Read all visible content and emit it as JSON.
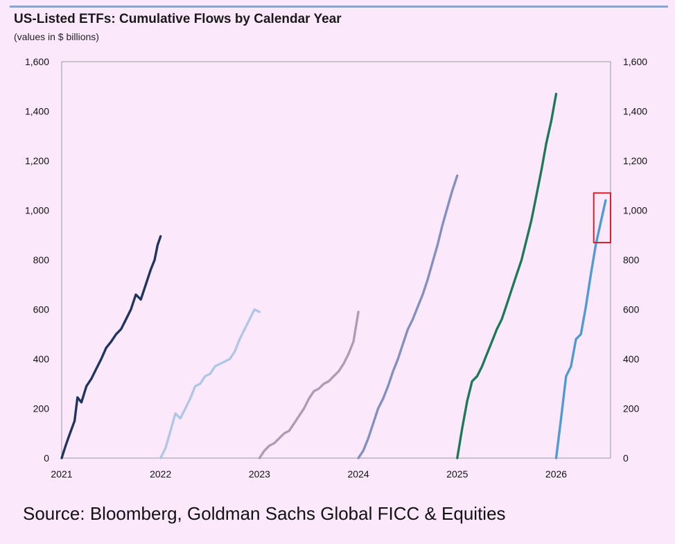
{
  "title": "US-Listed ETFs: Cumulative Flows by Calendar Year",
  "subtitle": "(values in $ billions)",
  "source": "Source: Bloomberg, Goldman Sachs Global FICC & Equities",
  "chart_data": {
    "type": "line",
    "title": "US-Listed ETFs: Cumulative Flows by Calendar Year",
    "ylabel": "(values in $ billions)",
    "ylim": [
      0,
      1600
    ],
    "xlim": [
      2021,
      2026.55
    ],
    "y_ticks": [
      "0",
      "200",
      "400",
      "600",
      "800",
      "1,000",
      "1,200",
      "1,400",
      "1,600"
    ],
    "y_tick_values": [
      0,
      200,
      400,
      600,
      800,
      1000,
      1200,
      1400,
      1600
    ],
    "x_ticks": [
      "2021",
      "2022",
      "2023",
      "2024",
      "2025",
      "2026"
    ],
    "x_tick_values": [
      2021,
      2022,
      2023,
      2024,
      2025,
      2026
    ],
    "legend": "none",
    "grid": false,
    "highlight_box": {
      "x": [
        2026.38,
        2026.55
      ],
      "y": [
        870,
        1070
      ],
      "color": "#d6202a"
    },
    "series": [
      {
        "color": "#1f3560",
        "x": [
          2021.0,
          2021.04,
          2021.08,
          2021.13,
          2021.16,
          2021.2,
          2021.25,
          2021.3,
          2021.35,
          2021.4,
          2021.45,
          2021.5,
          2021.55,
          2021.6,
          2021.65,
          2021.7,
          2021.75,
          2021.8,
          2021.85,
          2021.9,
          2021.94,
          2021.97,
          2022.0
        ],
        "y": [
          0,
          50,
          95,
          150,
          245,
          225,
          290,
          320,
          360,
          400,
          445,
          470,
          500,
          520,
          560,
          600,
          660,
          640,
          700,
          760,
          800,
          860,
          895
        ]
      },
      {
        "color": "#aec7e6",
        "x": [
          2022.0,
          2022.05,
          2022.1,
          2022.15,
          2022.2,
          2022.25,
          2022.3,
          2022.35,
          2022.4,
          2022.45,
          2022.5,
          2022.55,
          2022.6,
          2022.65,
          2022.7,
          2022.75,
          2022.8,
          2022.85,
          2022.9,
          2022.95,
          2023.0
        ],
        "y": [
          0,
          40,
          110,
          180,
          160,
          200,
          240,
          290,
          300,
          330,
          340,
          370,
          380,
          390,
          400,
          430,
          480,
          520,
          560,
          600,
          590
        ]
      },
      {
        "color": "#ad9cb3",
        "x": [
          2023.0,
          2023.05,
          2023.1,
          2023.15,
          2023.2,
          2023.25,
          2023.3,
          2023.35,
          2023.4,
          2023.45,
          2023.5,
          2023.55,
          2023.6,
          2023.65,
          2023.7,
          2023.75,
          2023.8,
          2023.85,
          2023.9,
          2023.95,
          2024.0
        ],
        "y": [
          0,
          30,
          50,
          60,
          80,
          100,
          110,
          140,
          170,
          200,
          240,
          270,
          280,
          300,
          310,
          330,
          350,
          380,
          420,
          470,
          590
        ]
      },
      {
        "color": "#8190c1",
        "x": [
          2024.0,
          2024.05,
          2024.1,
          2024.15,
          2024.2,
          2024.25,
          2024.3,
          2024.35,
          2024.4,
          2024.45,
          2024.5,
          2024.55,
          2024.6,
          2024.65,
          2024.7,
          2024.75,
          2024.8,
          2024.85,
          2024.9,
          2024.95,
          2025.0
        ],
        "y": [
          0,
          30,
          80,
          140,
          200,
          240,
          290,
          350,
          400,
          460,
          520,
          560,
          610,
          660,
          720,
          790,
          860,
          940,
          1010,
          1080,
          1140
        ]
      },
      {
        "color": "#1e7a56",
        "x": [
          2025.0,
          2025.05,
          2025.1,
          2025.15,
          2025.2,
          2025.25,
          2025.3,
          2025.35,
          2025.4,
          2025.45,
          2025.5,
          2025.55,
          2025.6,
          2025.65,
          2025.7,
          2025.75,
          2025.8,
          2025.85,
          2025.9,
          2025.95,
          2026.0
        ],
        "y": [
          0,
          120,
          230,
          310,
          330,
          370,
          420,
          470,
          520,
          560,
          620,
          680,
          740,
          800,
          880,
          960,
          1060,
          1160,
          1270,
          1360,
          1470
        ]
      },
      {
        "color": "#4e9ad6",
        "x": [
          2026.0,
          2026.05,
          2026.1,
          2026.15,
          2026.2,
          2026.25,
          2026.3,
          2026.35,
          2026.4,
          2026.45,
          2026.5
        ],
        "y": [
          0,
          160,
          330,
          370,
          480,
          500,
          610,
          740,
          860,
          950,
          1040
        ]
      }
    ]
  }
}
